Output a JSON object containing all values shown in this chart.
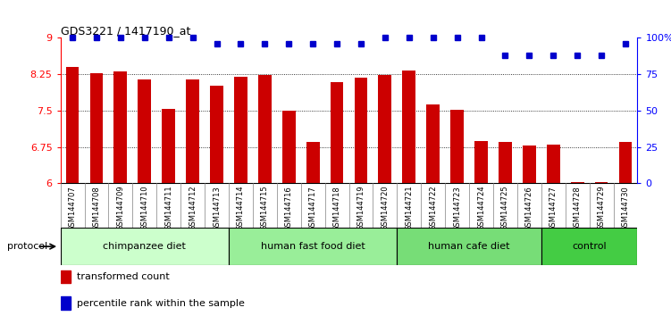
{
  "title": "GDS3221 / 1417190_at",
  "samples": [
    "GSM144707",
    "GSM144708",
    "GSM144709",
    "GSM144710",
    "GSM144711",
    "GSM144712",
    "GSM144713",
    "GSM144714",
    "GSM144715",
    "GSM144716",
    "GSM144717",
    "GSM144718",
    "GSM144719",
    "GSM144720",
    "GSM144721",
    "GSM144722",
    "GSM144723",
    "GSM144724",
    "GSM144725",
    "GSM144726",
    "GSM144727",
    "GSM144728",
    "GSM144729",
    "GSM144730"
  ],
  "bar_values": [
    8.4,
    8.27,
    8.3,
    8.15,
    7.53,
    8.14,
    8.02,
    8.2,
    8.24,
    7.5,
    6.85,
    8.08,
    8.18,
    8.24,
    8.32,
    7.62,
    7.52,
    6.87,
    6.85,
    6.78,
    6.8,
    6.03,
    6.03,
    6.85
  ],
  "percentile_values": [
    100,
    100,
    100,
    100,
    100,
    100,
    96,
    96,
    96,
    96,
    96,
    96,
    96,
    100,
    100,
    100,
    100,
    100,
    88,
    88,
    88,
    88,
    88,
    96
  ],
  "bar_color": "#cc0000",
  "dot_color": "#0000cc",
  "ylim_left": [
    6,
    9
  ],
  "ylim_right": [
    0,
    100
  ],
  "yticks_left": [
    6,
    6.75,
    7.5,
    8.25,
    9
  ],
  "yticks_right": [
    0,
    25,
    50,
    75,
    100
  ],
  "ytick_labels_left": [
    "6",
    "6.75",
    "7.5",
    "8.25",
    "9"
  ],
  "ytick_labels_right": [
    "0",
    "25",
    "50",
    "75",
    "100%"
  ],
  "groups": [
    {
      "label": "chimpanzee diet",
      "start": 0,
      "end": 7,
      "color": "#ccffcc"
    },
    {
      "label": "human fast food diet",
      "start": 7,
      "end": 14,
      "color": "#99ee99"
    },
    {
      "label": "human cafe diet",
      "start": 14,
      "end": 20,
      "color": "#77dd77"
    },
    {
      "label": "control",
      "start": 20,
      "end": 24,
      "color": "#44cc44"
    }
  ],
  "legend_items": [
    {
      "label": "transformed count",
      "color": "#cc0000"
    },
    {
      "label": "percentile rank within the sample",
      "color": "#0000cc"
    }
  ],
  "protocol_label": "protocol",
  "bg_color": "#e8e8e8",
  "fig_width": 7.51,
  "fig_height": 3.54
}
